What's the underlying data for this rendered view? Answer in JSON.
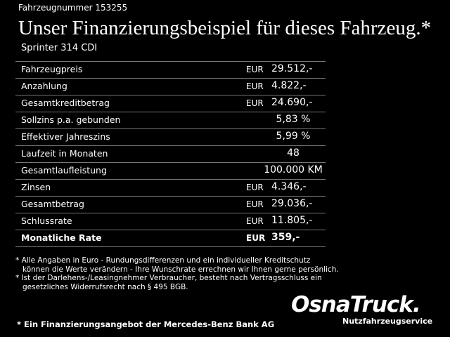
{
  "header": {
    "vehicle_number": "Fahrzeugnummer 153255",
    "title": "Unser Finanzierungsbeispiel für dieses Fahrzeug.*",
    "model": "Sprinter 314 CDI"
  },
  "table": {
    "rows": [
      {
        "label": "Fahrzeugpreis",
        "currency": "EUR",
        "value": "29.512,-"
      },
      {
        "label": "Anzahlung",
        "currency": "EUR",
        "value": "4.822,-"
      },
      {
        "label": "Gesamtkreditbetrag",
        "currency": "EUR",
        "value": "24.690,-"
      },
      {
        "label": "Sollzins p.a. gebunden",
        "value": "5,83 %"
      },
      {
        "label": "Effektiver Jahreszins",
        "value": "5,99 %"
      },
      {
        "label": "Laufzeit in Monaten",
        "value": "48"
      },
      {
        "label": "Gesamtlaufleistung",
        "value": "100.000 KM"
      },
      {
        "label": "Zinsen",
        "currency": "EUR",
        "value": "4.346,-"
      },
      {
        "label": "Gesamtbetrag",
        "currency": "EUR",
        "value": "29.036,-"
      },
      {
        "label": "Schlussrate",
        "currency": "EUR",
        "value": "11.805,-"
      },
      {
        "label": "Monatliche Rate",
        "currency": "EUR",
        "value": "359,-"
      }
    ]
  },
  "footnotes": [
    "* Alle Angaben in Euro - Rundungsdifferenzen und ein individueller Kreditschutz",
    "können die Werte verändern - Ihre Wunschrate errechnen wir Ihnen gerne persönlich.",
    "* Ist der Darlehens-/Leasingnehmer Verbraucher, besteht nach Vertragsschluss ein",
    "gesetzliches Widerrufsrecht nach § 495 BGB."
  ],
  "footer": {
    "note": "* Ein Finanzierungsangebot der Mercedes-Benz Bank AG",
    "logo": "OsnaTruck.",
    "logo_subtitle": "Nutzfahrzeugservice"
  }
}
